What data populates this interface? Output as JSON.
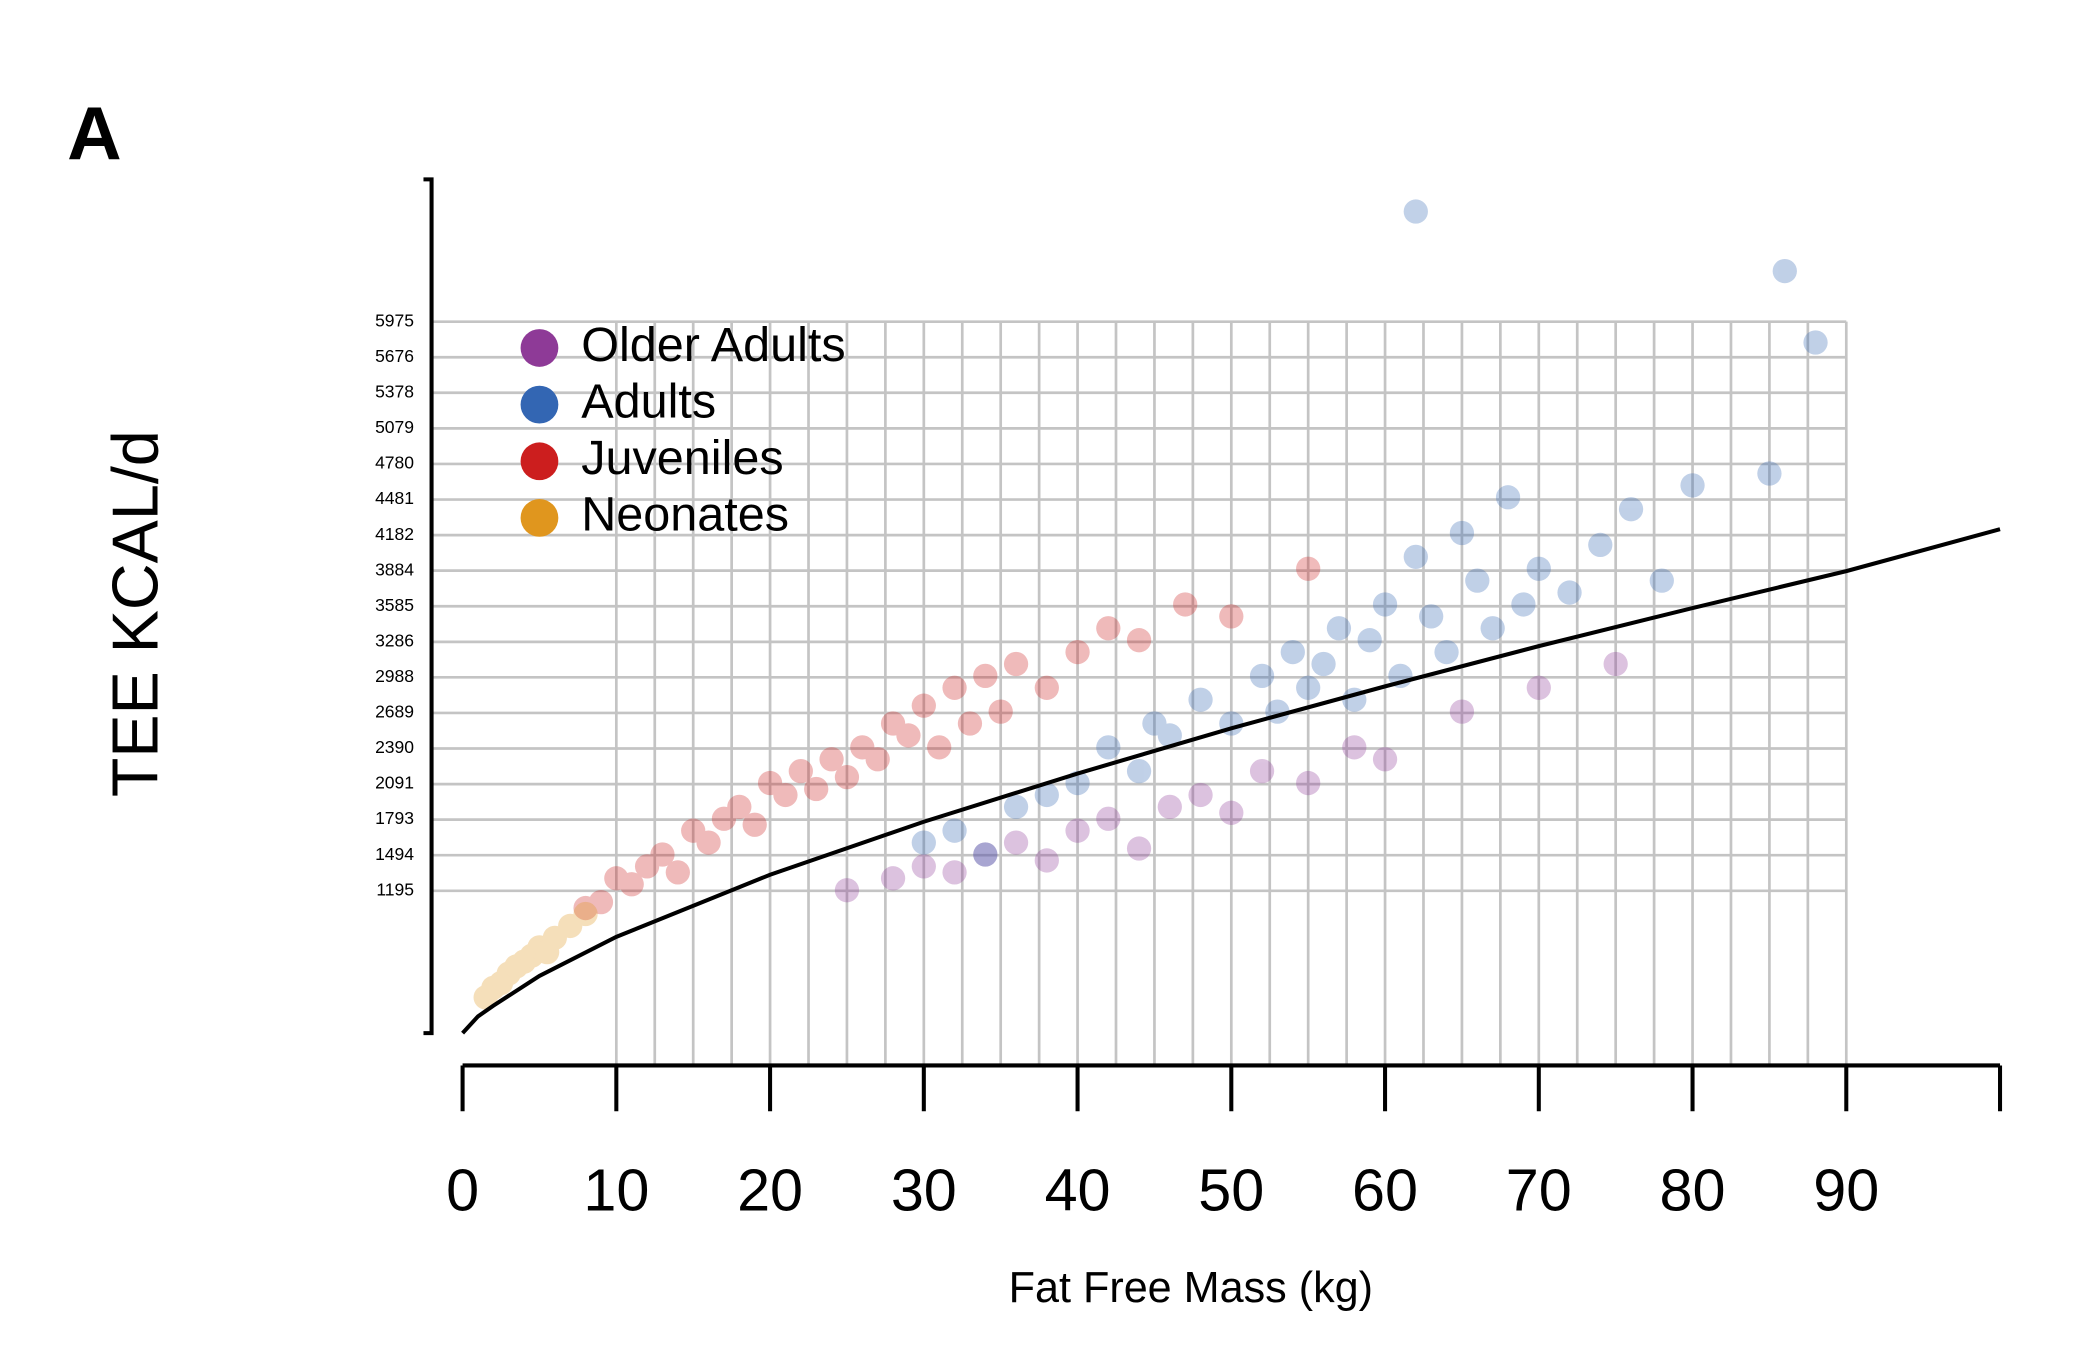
{
  "chart_data": {
    "type": "scatter",
    "panel_label": "A",
    "xlabel": "Fat Free Mass (kg)",
    "ylabel": "TEE KCAL/d",
    "xlim": [
      0,
      100
    ],
    "ylim": [
      0,
      7170
    ],
    "xticks": [
      0,
      10,
      20,
      30,
      40,
      50,
      60,
      70,
      80,
      90
    ],
    "yticks": [
      1195,
      1494,
      1793,
      2091,
      2390,
      2689,
      2988,
      3286,
      3585,
      3884,
      4182,
      4481,
      4780,
      5079,
      5378,
      5676,
      5975
    ],
    "grid": true,
    "legend": "upper left",
    "series": [
      {
        "name": "Older Adults",
        "color": "#8e3a97",
        "x": [
          25,
          28,
          30,
          32,
          34,
          36,
          38,
          40,
          42,
          44,
          46,
          48,
          50,
          52,
          55,
          58,
          60,
          65,
          70,
          75
        ],
        "values": [
          1200,
          1300,
          1400,
          1350,
          1500,
          1600,
          1450,
          1700,
          1800,
          1550,
          1900,
          2000,
          1850,
          2200,
          2100,
          2400,
          2300,
          2700,
          2900,
          3100
        ]
      },
      {
        "name": "Adults",
        "color": "#3366b3",
        "x": [
          30,
          32,
          34,
          36,
          38,
          40,
          42,
          44,
          45,
          46,
          48,
          50,
          52,
          53,
          54,
          55,
          56,
          57,
          58,
          59,
          60,
          61,
          62,
          63,
          64,
          65,
          66,
          67,
          68,
          69,
          70,
          72,
          74,
          76,
          78,
          80,
          85,
          88,
          62,
          86
        ],
        "values": [
          1600,
          1700,
          1500,
          1900,
          2000,
          2100,
          2400,
          2200,
          2600,
          2500,
          2800,
          2600,
          3000,
          2700,
          3200,
          2900,
          3100,
          3400,
          2800,
          3300,
          3600,
          3000,
          4000,
          3500,
          3200,
          4200,
          3800,
          3400,
          4500,
          3600,
          3900,
          3700,
          4100,
          4400,
          3800,
          4600,
          4700,
          5800,
          6900,
          6400
        ]
      },
      {
        "name": "Juveniles",
        "color": "#cc1e1e",
        "x": [
          8,
          9,
          10,
          11,
          12,
          13,
          14,
          15,
          16,
          17,
          18,
          19,
          20,
          21,
          22,
          23,
          24,
          25,
          26,
          27,
          28,
          29,
          30,
          31,
          32,
          33,
          34,
          35,
          36,
          38,
          40,
          42,
          44,
          47,
          50,
          55
        ],
        "values": [
          1050,
          1100,
          1300,
          1250,
          1400,
          1500,
          1350,
          1700,
          1600,
          1800,
          1900,
          1750,
          2100,
          2000,
          2200,
          2050,
          2300,
          2150,
          2400,
          2300,
          2600,
          2500,
          2750,
          2400,
          2900,
          2600,
          3000,
          2700,
          3100,
          2900,
          3200,
          3400,
          3300,
          3600,
          3500,
          3900
        ]
      },
      {
        "name": "Neonates",
        "color": "#e0961e",
        "x": [
          1.5,
          2,
          2.5,
          3,
          3.5,
          4,
          4.5,
          5,
          5.5,
          6,
          7,
          8
        ],
        "values": [
          300,
          380,
          420,
          500,
          560,
          600,
          650,
          720,
          680,
          800,
          900,
          1000
        ]
      }
    ],
    "fit": {
      "color": "#000000",
      "x": [
        0,
        1,
        2,
        5,
        10,
        20,
        30,
        40,
        50,
        60,
        70,
        80,
        90,
        100
      ],
      "values": [
        0,
        140,
        230,
        480,
        808,
        1330,
        1775,
        2180,
        2560,
        2912,
        3250,
        3570,
        3880,
        4232
      ]
    }
  }
}
